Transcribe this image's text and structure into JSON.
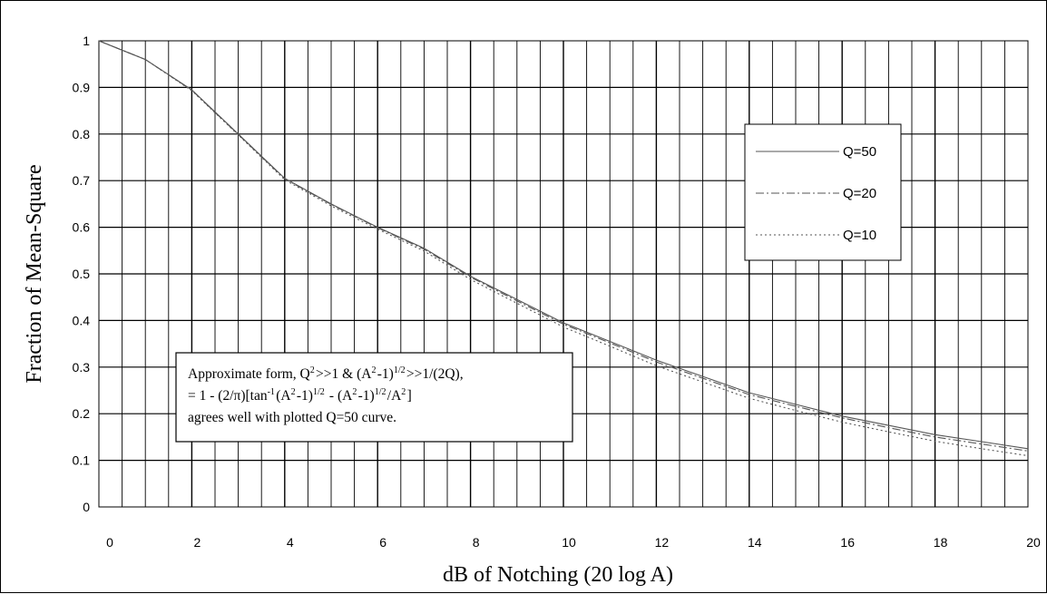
{
  "chart_data": {
    "type": "line",
    "xlabel": "dB of Notching (20 log A)",
    "ylabel": "Fraction of Mean-Square",
    "xlim": [
      0,
      20
    ],
    "ylim": [
      0,
      1
    ],
    "x_tick_labels": [
      "0",
      "2",
      "4",
      "6",
      "8",
      "10",
      "12",
      "14",
      "16",
      "18",
      "20"
    ],
    "y_tick_labels": [
      "0",
      "0.1",
      "0.2",
      "0.3",
      "0.4",
      "0.5",
      "0.6",
      "0.7",
      "0.8",
      "0.9",
      "1"
    ],
    "grid": true,
    "legend": {
      "placement": "top-right",
      "entries": [
        "Q=50",
        "Q=20",
        "Q=10"
      ]
    },
    "series": [
      {
        "name": "Q=50",
        "style": "solid",
        "color": "#555555",
        "x": [
          0,
          1,
          2,
          3,
          4,
          5,
          6,
          7,
          8,
          9,
          10,
          11,
          12,
          13,
          14,
          15,
          16,
          17,
          18,
          19,
          20
        ],
        "y": [
          1.0,
          0.96,
          0.895,
          0.8,
          0.705,
          0.65,
          0.6,
          0.555,
          0.495,
          0.445,
          0.395,
          0.355,
          0.315,
          0.28,
          0.245,
          0.22,
          0.195,
          0.175,
          0.155,
          0.14,
          0.125
        ]
      },
      {
        "name": "Q=20",
        "style": "dash-dot",
        "color": "#555555",
        "x": [
          0,
          1,
          2,
          3,
          4,
          5,
          6,
          7,
          8,
          9,
          10,
          11,
          12,
          13,
          14,
          15,
          16,
          17,
          18,
          19,
          20
        ],
        "y": [
          1.0,
          0.96,
          0.894,
          0.799,
          0.704,
          0.649,
          0.599,
          0.553,
          0.493,
          0.442,
          0.392,
          0.352,
          0.311,
          0.276,
          0.241,
          0.216,
          0.191,
          0.17,
          0.15,
          0.135,
          0.12
        ]
      },
      {
        "name": "Q=10",
        "style": "dotted",
        "color": "#555555",
        "x": [
          0,
          1,
          2,
          3,
          4,
          5,
          6,
          7,
          8,
          9,
          10,
          11,
          12,
          13,
          14,
          15,
          16,
          17,
          18,
          19,
          20
        ],
        "y": [
          1.0,
          0.96,
          0.893,
          0.798,
          0.702,
          0.646,
          0.596,
          0.549,
          0.488,
          0.437,
          0.386,
          0.345,
          0.303,
          0.268,
          0.233,
          0.207,
          0.182,
          0.161,
          0.141,
          0.125,
          0.11
        ]
      }
    ],
    "annotation": {
      "lines": [
        [
          "Approximate form, Q",
          {
            "sup": "2"
          },
          ">>1 & (A",
          {
            "sup": "2"
          },
          "-1)",
          {
            "sup": "1/2"
          },
          ">>1/(2Q),"
        ],
        [
          "= 1 - (2/π)[tan",
          {
            "sup": "-1"
          },
          "(A",
          {
            "sup": "2"
          },
          "-1)",
          {
            "sup": "1/2"
          },
          " - (A",
          {
            "sup": "2"
          },
          "-1)",
          {
            "sup": "1/2"
          },
          "/A",
          {
            "sup": "2"
          },
          "]"
        ],
        [
          "agrees well with plotted Q=50 curve."
        ]
      ]
    }
  }
}
